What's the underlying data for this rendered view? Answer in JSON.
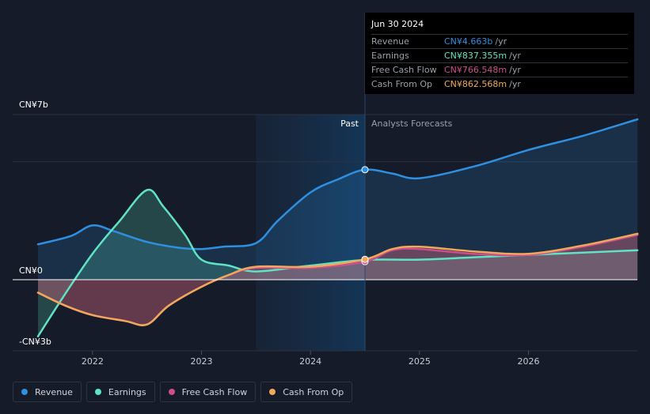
{
  "chart_data": {
    "type": "line",
    "y_axis": {
      "top_label": "CN¥7b",
      "zero_label": "CN¥0",
      "bottom_label": "-CN¥3b",
      "ylim": [
        -3,
        7
      ]
    },
    "x_axis": {
      "ticks": [
        "2022",
        "2023",
        "2024",
        "2025",
        "2026"
      ],
      "xlim": [
        2021.5,
        2027.0
      ]
    },
    "regions": {
      "past_label": "Past",
      "forecast_label": "Analysts Forecasts",
      "past_start": 2023.5,
      "divider": 2024.5
    },
    "series": [
      {
        "name": "Revenue",
        "color": "#2f8fe0",
        "x": [
          2021.5,
          2021.8,
          2022.0,
          2022.2,
          2022.5,
          2022.8,
          2023.0,
          2023.2,
          2023.5,
          2023.7,
          2024.0,
          2024.25,
          2024.5,
          2024.75,
          2025.0,
          2025.5,
          2026.0,
          2026.5,
          2027.0
        ],
        "y": [
          1.5,
          1.85,
          2.3,
          2.05,
          1.6,
          1.35,
          1.3,
          1.4,
          1.55,
          2.5,
          3.7,
          4.25,
          4.663,
          4.5,
          4.3,
          4.8,
          5.5,
          6.1,
          6.8
        ]
      },
      {
        "name": "Earnings",
        "color": "#5fe3c4",
        "x": [
          2021.5,
          2021.75,
          2022.0,
          2022.25,
          2022.5,
          2022.65,
          2022.85,
          2023.0,
          2023.25,
          2023.5,
          2024.0,
          2024.5,
          2025.0,
          2025.5,
          2026.0,
          2026.5,
          2027.0
        ],
        "y": [
          -2.4,
          -0.6,
          1.1,
          2.5,
          3.8,
          3.1,
          1.9,
          0.85,
          0.6,
          0.35,
          0.6,
          0.837,
          0.85,
          0.95,
          1.05,
          1.15,
          1.25
        ]
      },
      {
        "name": "Free Cash Flow",
        "color": "#cc4f8b",
        "x": [
          2021.5,
          2021.75,
          2022.0,
          2022.3,
          2022.5,
          2022.7,
          2023.0,
          2023.25,
          2023.5,
          2024.0,
          2024.5,
          2024.75,
          2025.0,
          2025.5,
          2026.0,
          2026.5,
          2027.0
        ],
        "y": [
          -0.55,
          -1.1,
          -1.5,
          -1.75,
          -1.9,
          -1.1,
          -0.3,
          0.2,
          0.5,
          0.5,
          0.767,
          1.25,
          1.3,
          1.1,
          1.05,
          1.4,
          1.9
        ]
      },
      {
        "name": "Cash From Op",
        "color": "#f0a95a",
        "x": [
          2021.5,
          2021.75,
          2022.0,
          2022.3,
          2022.5,
          2022.7,
          2023.0,
          2023.25,
          2023.5,
          2024.0,
          2024.5,
          2024.75,
          2025.0,
          2025.5,
          2026.0,
          2026.5,
          2027.0
        ],
        "y": [
          -0.55,
          -1.1,
          -1.5,
          -1.75,
          -1.9,
          -1.1,
          -0.3,
          0.2,
          0.55,
          0.55,
          0.863,
          1.3,
          1.4,
          1.2,
          1.1,
          1.45,
          1.95
        ]
      }
    ]
  },
  "tooltip": {
    "date": "Jun 30 2024",
    "rows": [
      {
        "label": "Revenue",
        "value": "CN¥4.663b",
        "unit": "/yr",
        "color": "#2f8fe0"
      },
      {
        "label": "Earnings",
        "value": "CN¥837.355m",
        "unit": "/yr",
        "color": "#5fe3c4"
      },
      {
        "label": "Free Cash Flow",
        "value": "CN¥766.548m",
        "unit": "/yr",
        "color": "#cc4f8b"
      },
      {
        "label": "Cash From Op",
        "value": "CN¥862.568m",
        "unit": "/yr",
        "color": "#f0a95a"
      }
    ]
  },
  "legend": [
    {
      "label": "Revenue",
      "color": "#2f8fe0"
    },
    {
      "label": "Earnings",
      "color": "#5fe3c4"
    },
    {
      "label": "Free Cash Flow",
      "color": "#cc4f8b"
    },
    {
      "label": "Cash From Op",
      "color": "#f0a95a"
    }
  ]
}
